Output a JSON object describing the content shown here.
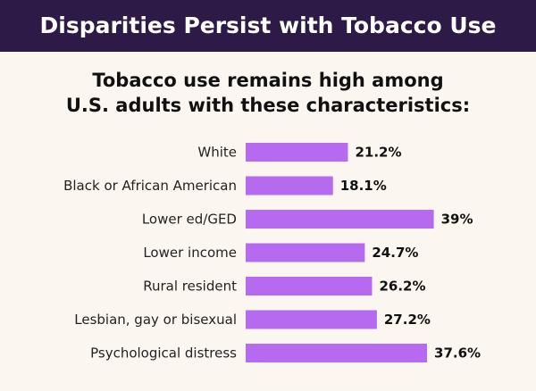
{
  "header": {
    "title": "Disparities Persist with Tobacco Use",
    "background_color": "#2e1a47",
    "text_color": "#ffffff"
  },
  "chart_data": {
    "type": "bar",
    "orientation": "horizontal",
    "title": "Tobacco use remains high among U.S. adults with these characteristics:",
    "categories": [
      "White",
      "Black or African American",
      "Lower ed/GED",
      "Lower income",
      "Rural resident",
      "Lesbian, gay or bisexual",
      "Psychological distress"
    ],
    "values": [
      21.2,
      18.1,
      39,
      24.7,
      26.2,
      27.2,
      37.6
    ],
    "value_labels": [
      "21.2%",
      "18.1%",
      "39%",
      "24.7%",
      "26.2%",
      "27.2%",
      "37.6%"
    ],
    "unit": "%",
    "xlim": [
      0,
      39
    ],
    "grid": false,
    "bar_color": "#b66af0"
  }
}
